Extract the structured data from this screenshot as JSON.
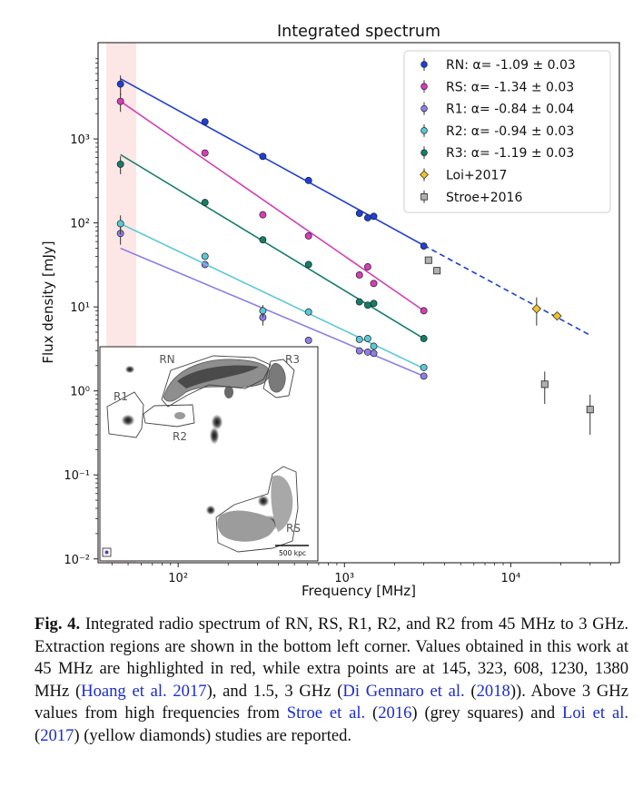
{
  "chart_data": {
    "type": "scatter",
    "title": "Integrated spectrum",
    "xlabel": "Frequency [MHz]",
    "ylabel": "Flux density [mJy]",
    "xscale": "log",
    "yscale": "log",
    "xlim": [
      33,
      45000
    ],
    "ylim": [
      0.009,
      14000
    ],
    "xticks": [
      {
        "value": 100,
        "label": "10²"
      },
      {
        "value": 1000,
        "label": "10³"
      },
      {
        "value": 10000,
        "label": "10⁴"
      }
    ],
    "yticks": [
      {
        "value": 0.01,
        "label": "10⁻²"
      },
      {
        "value": 0.1,
        "label": "10⁻¹"
      },
      {
        "value": 1,
        "label": "10⁰"
      },
      {
        "value": 10,
        "label": "10¹"
      },
      {
        "value": 100,
        "label": "10²"
      },
      {
        "value": 1000,
        "label": "10³"
      }
    ],
    "highlight_band": {
      "x": [
        37,
        56
      ],
      "color": "#fde6e6"
    },
    "legend_position": "top-right",
    "series": [
      {
        "name": "RN: α= -1.09 ± 0.03",
        "color": "#1f3fd8",
        "marker": "circle",
        "points": [
          [
            45,
            4500,
            1200
          ],
          [
            145,
            1600,
            0
          ],
          [
            323,
            620,
            0
          ],
          [
            608,
            320,
            0
          ],
          [
            1230,
            130,
            0
          ],
          [
            1380,
            115,
            0
          ],
          [
            1500,
            120,
            0
          ],
          [
            3000,
            53,
            0
          ]
        ],
        "fit": {
          "x": [
            45,
            3000
          ],
          "y": [
            5200,
            54
          ]
        },
        "fit_extension": {
          "x": [
            3000,
            30000
          ],
          "y": [
            54,
            4.6
          ]
        }
      },
      {
        "name": "RS: α= -1.34 ± 0.03",
        "color": "#d63db8",
        "marker": "circle",
        "points": [
          [
            45,
            2800,
            700
          ],
          [
            145,
            680,
            0
          ],
          [
            323,
            125,
            0
          ],
          [
            608,
            70,
            0
          ],
          [
            1230,
            24,
            0
          ],
          [
            1380,
            30,
            0
          ],
          [
            1500,
            19,
            0
          ],
          [
            3000,
            9,
            0
          ]
        ],
        "fit": {
          "x": [
            45,
            3000
          ],
          "y": [
            2800,
            9
          ]
        }
      },
      {
        "name": "R1: α= -0.84 ± 0.04",
        "color": "#8f7ee6",
        "marker": "circle",
        "points": [
          [
            45,
            75,
            20
          ],
          [
            145,
            32,
            0
          ],
          [
            323,
            7.5,
            1.5
          ],
          [
            608,
            4,
            0
          ],
          [
            1230,
            3,
            0
          ],
          [
            1380,
            2.9,
            0
          ],
          [
            1500,
            2.8,
            0
          ],
          [
            3000,
            1.5,
            0
          ]
        ],
        "fit": {
          "x": [
            45,
            3000
          ],
          "y": [
            50,
            1.5
          ]
        }
      },
      {
        "name": "R2: α= -0.94 ± 0.03",
        "color": "#5ac8d6",
        "marker": "circle",
        "points": [
          [
            45,
            98,
            25
          ],
          [
            145,
            40,
            0
          ],
          [
            323,
            9,
            1.5
          ],
          [
            608,
            8.7,
            0
          ],
          [
            1230,
            4.1,
            0
          ],
          [
            1380,
            4.2,
            0
          ],
          [
            1500,
            3.4,
            0
          ],
          [
            3000,
            1.9,
            0
          ]
        ],
        "fit": {
          "x": [
            45,
            3000
          ],
          "y": [
            98,
            1.85
          ]
        }
      },
      {
        "name": "R3: α= -1.19 ± 0.03",
        "color": "#147d6a",
        "marker": "circle",
        "points": [
          [
            45,
            500,
            120
          ],
          [
            145,
            175,
            0
          ],
          [
            323,
            63,
            0
          ],
          [
            608,
            32,
            0
          ],
          [
            1230,
            11.5,
            0
          ],
          [
            1380,
            10.5,
            0
          ],
          [
            1500,
            11,
            0
          ],
          [
            3000,
            4.2,
            0
          ]
        ],
        "fit": {
          "x": [
            45,
            3000
          ],
          "y": [
            650,
            4.2
          ]
        }
      },
      {
        "name": "Loi+2017",
        "color": "#f0c12c",
        "marker": "diamond",
        "points": [
          [
            14300,
            9.5,
            3.5
          ],
          [
            19000,
            7.8,
            0
          ]
        ]
      },
      {
        "name": "Stroe+2016",
        "color": "#b0b0b0",
        "marker": "square",
        "points": [
          [
            3200,
            36,
            0
          ],
          [
            3600,
            27,
            0
          ],
          [
            16000,
            1.2,
            0.5
          ],
          [
            30000,
            0.6,
            0.3
          ]
        ]
      }
    ],
    "inset": {
      "labels": [
        "RN",
        "R3",
        "R1",
        "R2",
        "RS"
      ],
      "scalebar": "500 kpc"
    }
  },
  "caption": {
    "fig_label": "Fig. 4.",
    "text_1": "Integrated radio spectrum of RN, RS, R1, R2, and R2 from 45 MHz to 3 GHz. Extraction regions are shown in the bottom left corner. Values obtained in this work at 45 MHz are highlighted in red, while extra points are at 145, 323, 608, 1230, 1380 MHz (",
    "ref_1": "Hoang et al. 2017",
    "text_2": "), and 1.5, 3 GHz (",
    "ref_2a": "Di Gennaro et al.",
    "text_2b": " (",
    "ref_2b": "2018",
    "text_3": ")). Above 3 GHz values from high frequencies from ",
    "ref_3a": "Stroe et al.",
    "text_3b": " (",
    "ref_3b": "2016",
    "text_4": ") (grey squares) and ",
    "ref_4a": "Loi et al.",
    "text_4b": " (",
    "ref_4b": "2017",
    "text_5": ") (yellow diamonds) studies are reported."
  }
}
